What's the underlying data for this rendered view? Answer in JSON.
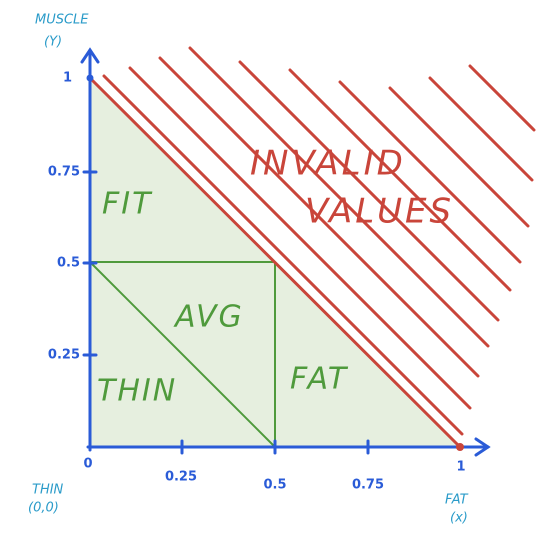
{
  "y_axis": {
    "name": "MUSCLE",
    "variable": "(Y)",
    "ticks": [
      "1",
      "0.75",
      "0.5",
      "0.25"
    ]
  },
  "x_axis": {
    "name": "FAT",
    "variable": "(x)",
    "ticks": [
      "0",
      "0.25",
      "0.5",
      "0.75",
      "1"
    ]
  },
  "origin": {
    "name": "THIN",
    "coords": "(0,0)"
  },
  "regions": [
    "FIT",
    "AVG",
    "THIN",
    "FAT"
  ],
  "invalid": [
    "INVALID",
    "VALUES"
  ]
}
